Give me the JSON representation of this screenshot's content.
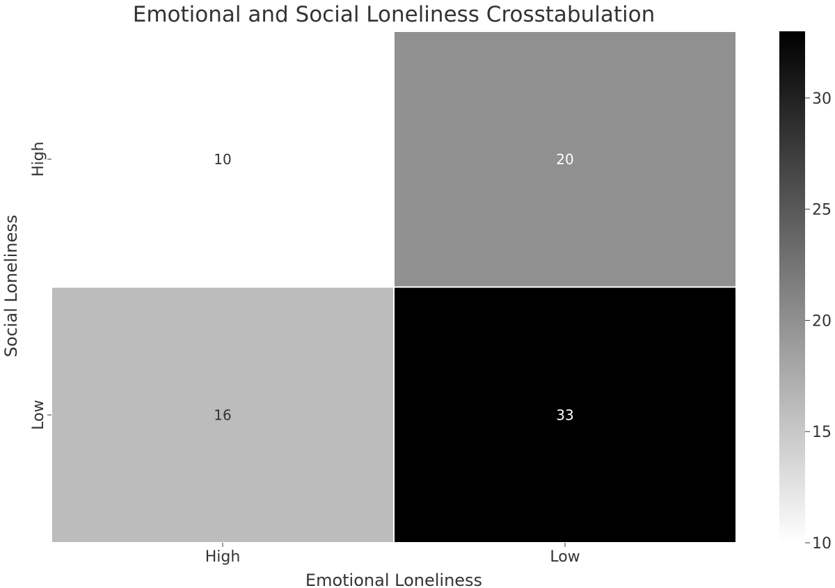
{
  "chart_data": {
    "type": "heatmap",
    "title": "Emotional and Social Loneliness Crosstabulation",
    "xlabel": "Emotional Loneliness",
    "ylabel": "Social Loneliness",
    "x_categories": [
      "High",
      "Low"
    ],
    "y_categories": [
      "High",
      "Low"
    ],
    "values": [
      [
        10,
        20
      ],
      [
        16,
        33
      ]
    ],
    "colormap": "greys",
    "color_range": [
      10,
      33
    ],
    "colorbar_ticks": [
      10,
      15,
      20,
      25,
      30
    ]
  }
}
